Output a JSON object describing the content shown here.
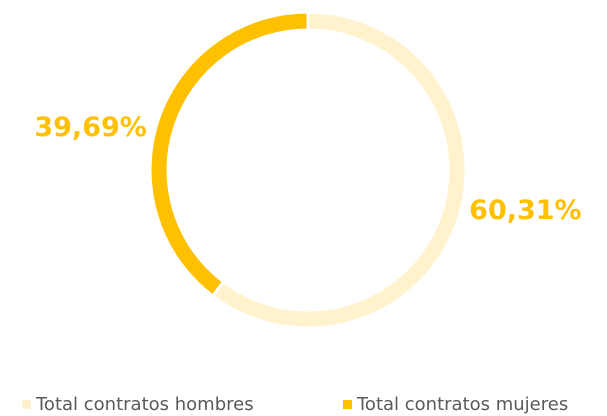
{
  "chart_data": {
    "type": "donut",
    "categories": [
      "Total contratos hombres",
      "Total contratos mujeres"
    ],
    "values": [
      60.31,
      39.69
    ],
    "value_labels": [
      "60,31%",
      "39,69%"
    ],
    "colors": [
      "#FFF2CC",
      "#FFC000"
    ],
    "label_color": "#FFC000",
    "legend": "bottom"
  }
}
